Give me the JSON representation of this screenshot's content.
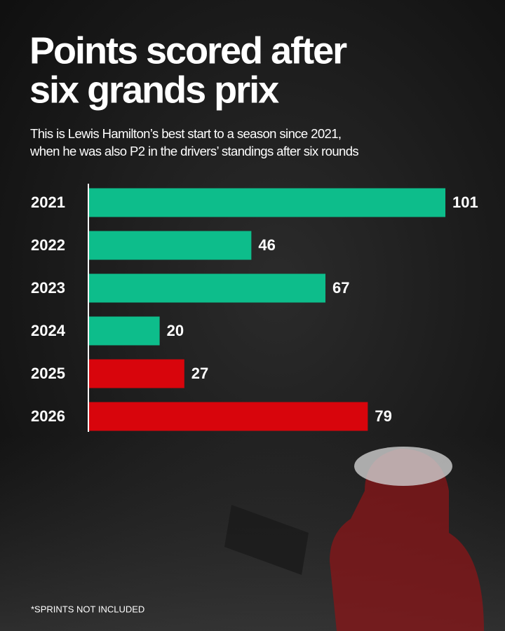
{
  "chart_data": {
    "type": "bar",
    "orientation": "horizontal",
    "title": [
      "Points scored after",
      "six grands prix"
    ],
    "subtitle": [
      "This is Lewis Hamilton’s best start to a season since 2021,",
      "when he was also P2 in the drivers’ standings after six rounds"
    ],
    "categories": [
      "2021",
      "2022",
      "2023",
      "2024",
      "2025",
      "2026"
    ],
    "values": [
      101,
      46,
      67,
      20,
      27,
      79
    ],
    "colors": [
      "#0dbd8b",
      "#0dbd8b",
      "#0dbd8b",
      "#0dbd8b",
      "#d8050c",
      "#d8050c"
    ],
    "footnote": "*SPRINTS NOT INCLUDED"
  }
}
